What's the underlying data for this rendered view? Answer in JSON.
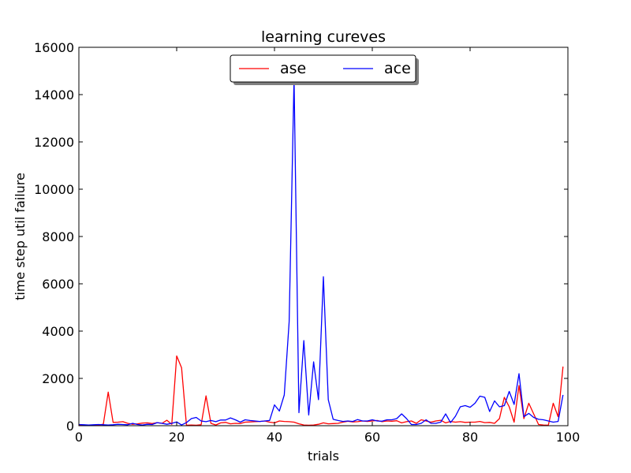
{
  "chart_data": {
    "type": "line",
    "title": "learning cureves",
    "xlabel": "trials",
    "ylabel": "time step util failure",
    "xlim": [
      0,
      100
    ],
    "ylim": [
      0,
      16000
    ],
    "xticks": [
      0,
      20,
      40,
      60,
      80,
      100
    ],
    "yticks": [
      0,
      2000,
      4000,
      6000,
      8000,
      10000,
      12000,
      14000,
      16000
    ],
    "grid": false,
    "legend": "top-center",
    "x": [
      0,
      1,
      2,
      3,
      4,
      5,
      6,
      7,
      8,
      9,
      10,
      11,
      12,
      13,
      14,
      15,
      16,
      17,
      18,
      19,
      20,
      21,
      22,
      23,
      24,
      25,
      26,
      27,
      28,
      29,
      30,
      31,
      32,
      33,
      34,
      35,
      36,
      37,
      38,
      39,
      40,
      41,
      42,
      43,
      44,
      45,
      46,
      47,
      48,
      49,
      50,
      51,
      52,
      53,
      54,
      55,
      56,
      57,
      58,
      59,
      60,
      61,
      62,
      63,
      64,
      65,
      66,
      67,
      68,
      69,
      70,
      71,
      72,
      73,
      74,
      75,
      76,
      77,
      78,
      79,
      80,
      81,
      82,
      83,
      84,
      85,
      86,
      87,
      88,
      89,
      90,
      91,
      92,
      93,
      94,
      95,
      96,
      97,
      98,
      99
    ],
    "series": [
      {
        "name": "ase",
        "color": "#ff0000",
        "values": [
          30,
          20,
          15,
          25,
          30,
          60,
          1420,
          140,
          150,
          170,
          100,
          60,
          80,
          110,
          120,
          90,
          130,
          100,
          230,
          60,
          2950,
          2450,
          20,
          30,
          20,
          40,
          1260,
          100,
          30,
          120,
          140,
          80,
          100,
          90,
          150,
          160,
          170,
          180,
          200,
          150,
          120,
          200,
          180,
          170,
          150,
          80,
          30,
          20,
          30,
          60,
          120,
          80,
          90,
          100,
          150,
          190,
          160,
          170,
          200,
          180,
          200,
          220,
          170,
          200,
          190,
          210,
          120,
          170,
          200,
          100,
          250,
          200,
          150,
          200,
          230,
          120,
          180,
          150,
          170,
          140,
          150,
          150,
          180,
          130,
          140,
          100,
          300,
          1200,
          800,
          150,
          1700,
          300,
          950,
          500,
          50,
          30,
          20,
          950,
          380,
          2500
        ]
      },
      {
        "name": "ace",
        "color": "#0000ff",
        "values": [
          50,
          40,
          30,
          40,
          50,
          40,
          30,
          40,
          60,
          50,
          40,
          100,
          50,
          30,
          60,
          50,
          130,
          100,
          60,
          100,
          160,
          30,
          130,
          300,
          350,
          200,
          170,
          220,
          170,
          240,
          240,
          330,
          250,
          150,
          250,
          220,
          200,
          180,
          200,
          220,
          880,
          620,
          1300,
          4400,
          14700,
          550,
          3600,
          450,
          2700,
          1100,
          6300,
          1100,
          270,
          220,
          180,
          200,
          180,
          260,
          200,
          200,
          250,
          200,
          190,
          250,
          250,
          300,
          500,
          300,
          50,
          50,
          100,
          250,
          100,
          100,
          150,
          500,
          130,
          400,
          800,
          850,
          780,
          950,
          1250,
          1200,
          600,
          1050,
          800,
          850,
          1450,
          900,
          2200,
          380,
          520,
          350,
          270,
          250,
          200,
          150,
          180,
          1300
        ]
      }
    ]
  }
}
